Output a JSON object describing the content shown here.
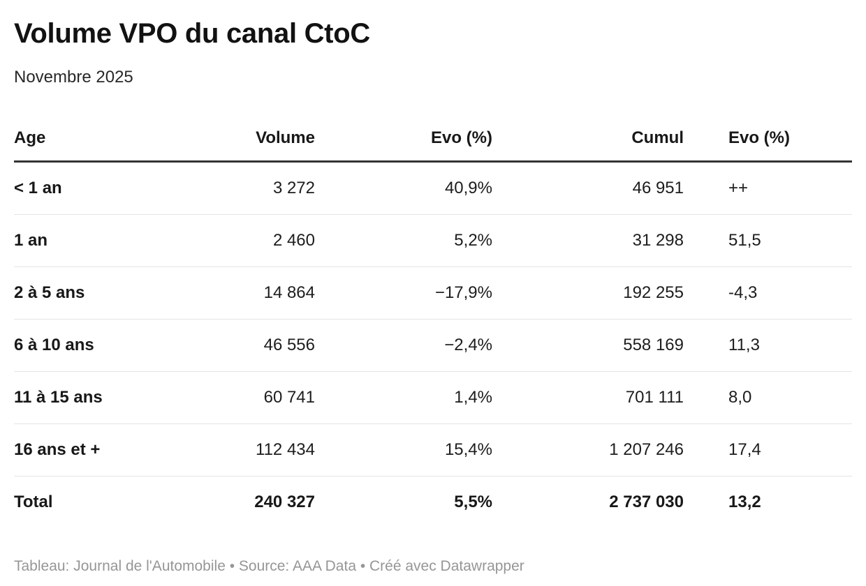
{
  "header": {
    "title": "Volume VPO du canal CtoC",
    "subtitle": "Novembre 2025"
  },
  "table": {
    "columns": [
      {
        "label": "Age",
        "align": "left"
      },
      {
        "label": "Volume",
        "align": "right"
      },
      {
        "label": "Evo (%)",
        "align": "right"
      },
      {
        "label": "Cumul",
        "align": "right"
      },
      {
        "label": "Evo (%)",
        "align": "left"
      }
    ],
    "rows": [
      {
        "age": "< 1 an",
        "volume": "3 272",
        "evo": "40,9%",
        "cumul": "46 951",
        "evo_cumul": "++"
      },
      {
        "age": "1 an",
        "volume": "2 460",
        "evo": "5,2%",
        "cumul": "31 298",
        "evo_cumul": "51,5"
      },
      {
        "age": "2 à 5 ans",
        "volume": "14 864",
        "evo": "−17,9%",
        "cumul": "192 255",
        "evo_cumul": "-4,3"
      },
      {
        "age": "6 à 10 ans",
        "volume": "46 556",
        "evo": "−2,4%",
        "cumul": "558 169",
        "evo_cumul": "11,3"
      },
      {
        "age": "11 à 15 ans",
        "volume": "60 741",
        "evo": "1,4%",
        "cumul": "701 111",
        "evo_cumul": "8,0"
      },
      {
        "age": "16 ans et +",
        "volume": "112 434",
        "evo": "15,4%",
        "cumul": "1 207 246",
        "evo_cumul": "17,4"
      }
    ],
    "total": {
      "age": "Total",
      "volume": "240 327",
      "evo": "5,5%",
      "cumul": "2 737 030",
      "evo_cumul": "13,2"
    }
  },
  "footer": {
    "text": "Tableau: Journal de l'Automobile • Source: AAA Data • Créé avec Datawrapper"
  },
  "colors": {
    "text": "#1d1d1d",
    "header_border": "#333333",
    "row_divider": "#e4e4e4",
    "footer_text": "#969696",
    "background": "#ffffff"
  },
  "chart_data": {
    "type": "table",
    "title": "Volume VPO du canal CtoC",
    "subtitle": "Novembre 2025",
    "columns": [
      "Age",
      "Volume",
      "Evo (%)",
      "Cumul",
      "Evo (%)"
    ],
    "rows": [
      [
        "< 1 an",
        3272,
        40.9,
        46951,
        "++"
      ],
      [
        "1 an",
        2460,
        5.2,
        31298,
        51.5
      ],
      [
        "2 à 5 ans",
        14864,
        -17.9,
        192255,
        -4.3
      ],
      [
        "6 à 10 ans",
        46556,
        -2.4,
        558169,
        11.3
      ],
      [
        "11 à 15 ans",
        60741,
        1.4,
        701111,
        8.0
      ],
      [
        "16 ans et +",
        112434,
        15.4,
        1207246,
        17.4
      ],
      [
        "Total",
        240327,
        5.5,
        2737030,
        13.2
      ]
    ],
    "byline": "Journal de l'Automobile",
    "source": "AAA Data",
    "created_with": "Datawrapper"
  }
}
